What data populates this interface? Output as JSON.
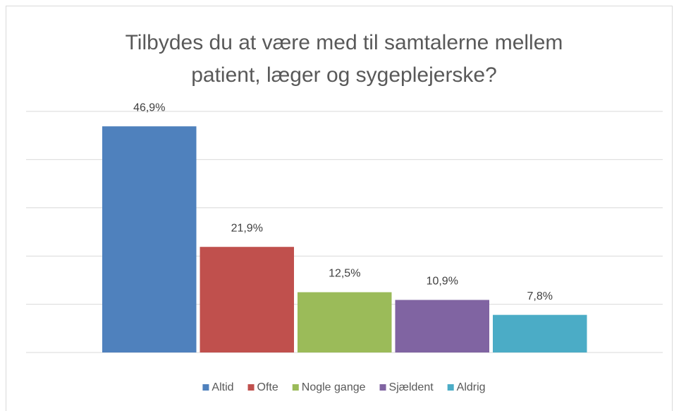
{
  "chart_data": {
    "type": "bar",
    "title": [
      "Tilbydes du at være med til samtalerne mellem",
      "patient, læger og sygeplejerske?"
    ],
    "categories": [
      "Altid",
      "Ofte",
      "Nogle gange",
      "Sjældent",
      "Aldrig"
    ],
    "values": [
      46.9,
      21.9,
      12.5,
      10.9,
      7.8
    ],
    "value_labels": [
      "46,9%",
      "21,9%",
      "12,5%",
      "10,9%",
      "7,8%"
    ],
    "colors": [
      "#4f81bd",
      "#c0504d",
      "#9bbb59",
      "#8064a2",
      "#4bacc6"
    ],
    "ylim": [
      0,
      50
    ],
    "yticks": [
      0,
      10,
      20,
      30,
      40,
      50
    ],
    "grid": true,
    "legend": "bottom"
  }
}
